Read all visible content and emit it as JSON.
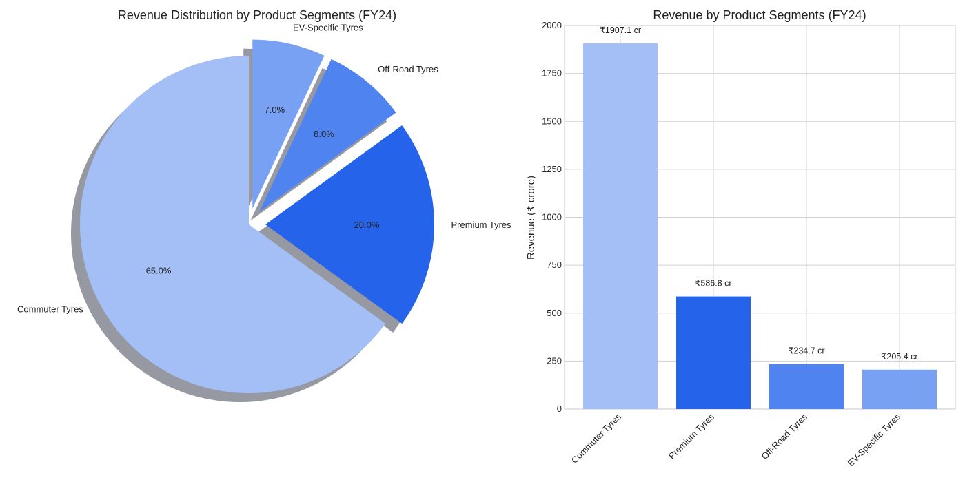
{
  "chart_data": [
    {
      "type": "pie",
      "title": "Revenue Distribution by Product Segments (FY24)",
      "categories": [
        "Commuter Tyres",
        "Premium Tyres",
        "Off-Road Tyres",
        "EV-Specific Tyres"
      ],
      "values": [
        65.0,
        20.0,
        8.0,
        7.0
      ],
      "value_labels": [
        "65.0%",
        "20.0%",
        "8.0%",
        "7.0%"
      ],
      "colors": [
        "#a3bff6",
        "#2563eb",
        "#4f83ef",
        "#78a0f3"
      ],
      "shadow": true,
      "start_angle": 90,
      "direction": "counterclockwise",
      "exploded": [
        false,
        true,
        true,
        true
      ]
    },
    {
      "type": "bar",
      "title": "Revenue by Product Segments (FY24)",
      "categories": [
        "Commuter Tyres",
        "Premium Tyres",
        "Off-Road Tyres",
        "EV-Specific Tyres"
      ],
      "values": [
        1907.1,
        586.8,
        234.7,
        205.4
      ],
      "value_labels": [
        "₹1907.1 cr",
        "₹586.8 cr",
        "₹234.7 cr",
        "₹205.4 cr"
      ],
      "colors": [
        "#a3bff6",
        "#2563eb",
        "#4f83ef",
        "#78a0f3"
      ],
      "xlabel": "",
      "ylabel": "Revenue (₹ crore)",
      "ylim": [
        0,
        2000
      ],
      "yticks": [
        0,
        250,
        500,
        750,
        1000,
        1250,
        1500,
        1750,
        2000
      ],
      "grid": true
    }
  ]
}
